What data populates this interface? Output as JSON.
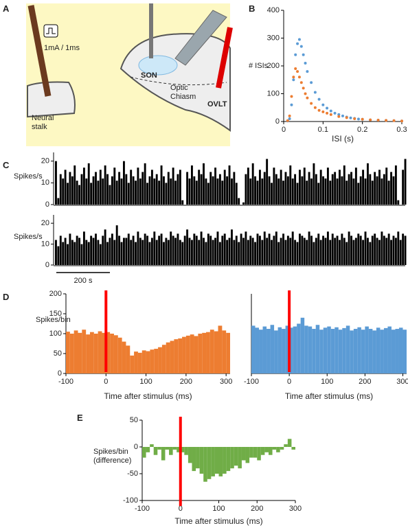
{
  "panels": [
    "A",
    "B",
    "C",
    "D",
    "E"
  ],
  "illustration": {
    "stimulus": "1mA / 1ms",
    "son": "SON",
    "chiasm": "Optic Chiasm",
    "ovlt": "OVLT",
    "stalk": "Neural stalk"
  },
  "chart_data": [
    {
      "type": "scatter",
      "xlabel": "ISI (s)",
      "ylabel": "# ISIs",
      "xlim": [
        0,
        0.3
      ],
      "xticks": [
        0,
        0.1,
        0.2,
        0.3
      ],
      "ylim": [
        0,
        400
      ],
      "yticks": [
        0,
        100,
        200,
        300,
        400
      ],
      "series": [
        {
          "color": "#5b9bd5",
          "x": [
            0.01,
            0.015,
            0.02,
            0.025,
            0.03,
            0.035,
            0.04,
            0.045,
            0.05,
            0.055,
            0.06,
            0.07,
            0.08,
            0.09,
            0.1,
            0.11,
            0.12,
            0.13,
            0.14,
            0.15,
            0.16,
            0.17,
            0.18,
            0.19,
            0.2,
            0.22,
            0.24,
            0.26,
            0.28,
            0.3
          ],
          "values": [
            2,
            10,
            60,
            150,
            240,
            280,
            295,
            270,
            240,
            210,
            180,
            140,
            105,
            80,
            60,
            48,
            38,
            30,
            25,
            20,
            16,
            13,
            11,
            9,
            8,
            6,
            5,
            4,
            3,
            2
          ]
        },
        {
          "color": "#ed7d31",
          "x": [
            0.01,
            0.015,
            0.02,
            0.025,
            0.03,
            0.035,
            0.04,
            0.045,
            0.05,
            0.055,
            0.06,
            0.07,
            0.08,
            0.09,
            0.1,
            0.11,
            0.12,
            0.14,
            0.16,
            0.18,
            0.2,
            0.22,
            0.24,
            0.26,
            0.28,
            0.3
          ],
          "values": [
            3,
            20,
            90,
            160,
            190,
            180,
            160,
            140,
            120,
            100,
            85,
            65,
            50,
            40,
            35,
            30,
            25,
            18,
            14,
            10,
            8,
            6,
            5,
            4,
            3,
            2
          ]
        }
      ]
    },
    {
      "type": "bar",
      "ylabel": "Spikes/s",
      "color": "#000000",
      "ylim": [
        0,
        24
      ],
      "yticks": [
        0,
        10,
        20
      ],
      "values": [
        20,
        3,
        14,
        12,
        16,
        10,
        15,
        13,
        18,
        11,
        9,
        14,
        17,
        12,
        19,
        10,
        13,
        15,
        11,
        16,
        12,
        18,
        14,
        9,
        13,
        17,
        11,
        15,
        12,
        20,
        14,
        10,
        16,
        13,
        11,
        17,
        12,
        15,
        19,
        10,
        13,
        16,
        12,
        14,
        11,
        18,
        13,
        10,
        15,
        12,
        17,
        11,
        14,
        16,
        2,
        0,
        15,
        12,
        18,
        13,
        11,
        16,
        14,
        19,
        12,
        10,
        15,
        13,
        17,
        12,
        14,
        11,
        16,
        13,
        18,
        12,
        15,
        10,
        3,
        0,
        1,
        14,
        17,
        12,
        19,
        13,
        11,
        16,
        12,
        15,
        21,
        13,
        10,
        17,
        14,
        12,
        16,
        11,
        15,
        13,
        18,
        12,
        14,
        10,
        16,
        13,
        17,
        11,
        15,
        12,
        19,
        14,
        10,
        16,
        13,
        12,
        17,
        11,
        14,
        15,
        12,
        16,
        13,
        18,
        11,
        14,
        15,
        12,
        17,
        10,
        13,
        16,
        12,
        19,
        14,
        11,
        15,
        13,
        16,
        12,
        14,
        17,
        11,
        15,
        13,
        18,
        2,
        0,
        16,
        21
      ]
    },
    {
      "type": "bar",
      "ylabel": "Spikes/s",
      "color": "#000000",
      "ylim": [
        0,
        24
      ],
      "yticks": [
        0,
        10,
        20
      ],
      "scalebar": "200 s",
      "values": [
        12,
        9,
        14,
        11,
        13,
        10,
        15,
        12,
        11,
        14,
        13,
        10,
        16,
        12,
        11,
        14,
        13,
        15,
        12,
        10,
        14,
        17,
        11,
        13,
        15,
        12,
        19,
        14,
        11,
        13,
        13,
        15,
        12,
        14,
        11,
        16,
        13,
        12,
        15,
        14,
        11,
        13,
        16,
        12,
        14,
        15,
        11,
        13,
        12,
        16,
        14,
        13,
        15,
        12,
        11,
        14,
        17,
        13,
        12,
        15,
        14,
        12,
        16,
        13,
        11,
        15,
        14,
        12,
        13,
        16,
        11,
        14,
        15,
        12,
        13,
        17,
        12,
        14,
        11,
        15,
        13,
        16,
        12,
        14,
        13,
        11,
        15,
        14,
        12,
        16,
        13,
        15,
        12,
        14,
        16,
        11,
        13,
        15,
        12,
        14,
        13,
        16,
        12,
        11,
        15,
        14,
        13,
        12,
        16,
        14,
        11,
        13,
        15,
        12,
        14,
        13,
        16,
        12,
        15,
        13,
        14,
        12,
        15,
        13,
        11,
        16,
        14,
        12,
        13,
        15,
        14,
        12,
        16,
        13,
        11,
        14,
        15,
        13,
        12,
        16,
        14,
        13,
        15,
        12,
        14,
        13,
        16,
        12,
        15,
        14
      ]
    },
    {
      "type": "histogram",
      "xlabel": "Time after stimulus (ms)",
      "ylabel": "Spikes/bin",
      "color": "#ed7d31",
      "marker_x": 0,
      "marker_color": "#ff0000",
      "xlim": [
        -100,
        310
      ],
      "xticks": [
        -100,
        0,
        100,
        200,
        300
      ],
      "ylim": [
        0,
        200
      ],
      "yticks": [
        0,
        50,
        100,
        150,
        200
      ],
      "bins": [
        -100,
        -90,
        -80,
        -70,
        -60,
        -50,
        -40,
        -30,
        -20,
        -10,
        0,
        10,
        20,
        30,
        40,
        50,
        60,
        70,
        80,
        90,
        100,
        110,
        120,
        130,
        140,
        150,
        160,
        170,
        180,
        190,
        200,
        210,
        220,
        230,
        240,
        250,
        260,
        270,
        280,
        290,
        300,
        310
      ],
      "values": [
        105,
        100,
        108,
        102,
        110,
        98,
        104,
        100,
        106,
        102,
        104,
        100,
        96,
        90,
        80,
        70,
        45,
        55,
        52,
        58,
        56,
        60,
        62,
        66,
        72,
        78,
        82,
        86,
        88,
        92,
        95,
        98,
        94,
        100,
        102,
        104,
        110,
        106,
        120,
        108,
        102
      ]
    },
    {
      "type": "histogram",
      "xlabel": "Time after stimulus (ms)",
      "color": "#5b9bd5",
      "marker_x": 0,
      "marker_color": "#ff0000",
      "xlim": [
        -100,
        310
      ],
      "xticks": [
        -100,
        0,
        100,
        200,
        300
      ],
      "ylim": [
        0,
        200
      ],
      "bins": [
        -100,
        -90,
        -80,
        -70,
        -60,
        -50,
        -40,
        -30,
        -20,
        -10,
        0,
        10,
        20,
        30,
        40,
        50,
        60,
        70,
        80,
        90,
        100,
        110,
        120,
        130,
        140,
        150,
        160,
        170,
        180,
        190,
        200,
        210,
        220,
        230,
        240,
        250,
        260,
        270,
        280,
        290,
        300,
        310
      ],
      "values": [
        120,
        115,
        110,
        118,
        112,
        122,
        108,
        116,
        112,
        120,
        115,
        118,
        125,
        140,
        120,
        118,
        112,
        122,
        110,
        115,
        118,
        112,
        116,
        110,
        114,
        120,
        108,
        112,
        116,
        110,
        118,
        112,
        108,
        115,
        110,
        114,
        118,
        110,
        112,
        115,
        110
      ]
    },
    {
      "type": "histogram",
      "xlabel": "Time after stimulus (ms)",
      "ylabel": "Spikes/bin (difference)",
      "color": "#70ad47",
      "marker_x": 0,
      "marker_color": "#ff0000",
      "xlim": [
        -100,
        300
      ],
      "xticks": [
        -100,
        0,
        100,
        200,
        300
      ],
      "ylim": [
        -100,
        50
      ],
      "yticks": [
        -100,
        -50,
        0,
        50
      ],
      "bins": [
        -100,
        -90,
        -80,
        -70,
        -60,
        -50,
        -40,
        -30,
        -20,
        -10,
        0,
        10,
        20,
        30,
        40,
        50,
        60,
        70,
        80,
        90,
        100,
        110,
        120,
        130,
        140,
        150,
        160,
        170,
        180,
        190,
        200,
        210,
        220,
        230,
        240,
        250,
        260,
        270,
        280,
        290,
        300
      ],
      "values": [
        -20,
        -10,
        5,
        -15,
        -5,
        -25,
        -5,
        -15,
        -5,
        -10,
        -10,
        -15,
        -30,
        -45,
        -40,
        -50,
        -65,
        -60,
        -55,
        -50,
        -55,
        -50,
        -45,
        -40,
        -35,
        -40,
        -25,
        -30,
        -20,
        -20,
        -25,
        -15,
        -10,
        -15,
        -5,
        -10,
        -5,
        5,
        15,
        -5
      ]
    }
  ]
}
